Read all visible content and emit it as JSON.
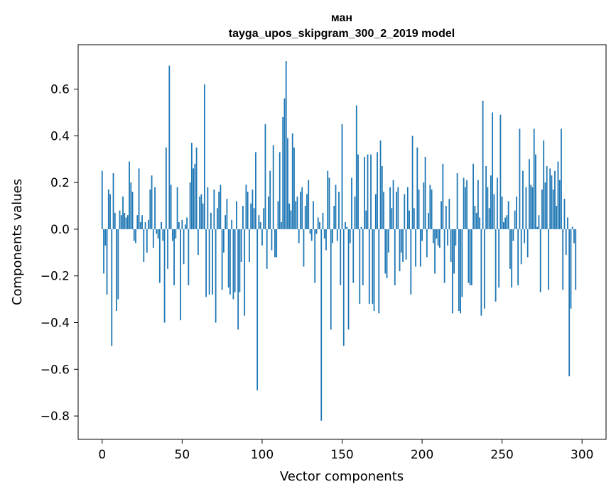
{
  "chart_data": {
    "type": "bar",
    "title": "ман",
    "subtitle": "tayga_upos_skipgram_300_2_2019 model",
    "xlabel": "Vector components",
    "ylabel": "Components values",
    "xlim": [
      -15,
      315
    ],
    "ylim": [
      -0.9,
      0.79
    ],
    "xticks": [
      0,
      50,
      100,
      150,
      200,
      250,
      300
    ],
    "xtick_labels": [
      "0",
      "50",
      "100",
      "150",
      "200",
      "250",
      "300"
    ],
    "yticks": [
      -0.8,
      -0.6,
      -0.4,
      -0.2,
      0.0,
      0.2,
      0.4,
      0.6
    ],
    "ytick_labels": [
      "−0.8",
      "−0.6",
      "−0.4",
      "−0.2",
      "0.0",
      "0.2",
      "0.4",
      "0.6"
    ],
    "bar_color": "#1f77b4",
    "grid": false,
    "values": [
      0.25,
      -0.19,
      -0.07,
      -0.28,
      0.17,
      0.15,
      -0.5,
      0.24,
      0.07,
      -0.35,
      -0.3,
      0.08,
      0.06,
      0.14,
      0.07,
      0.05,
      0.06,
      0.29,
      0.2,
      0.16,
      -0.05,
      -0.06,
      0.06,
      0.26,
      0.03,
      0.06,
      -0.14,
      0.03,
      -0.1,
      0.04,
      0.17,
      0.23,
      -0.08,
      0.18,
      -0.02,
      -0.04,
      -0.23,
      0.03,
      -0.05,
      -0.4,
      0.35,
      -0.17,
      0.7,
      0.19,
      -0.05,
      -0.24,
      -0.04,
      0.18,
      0.03,
      -0.39,
      0.04,
      -0.15,
      0.02,
      0.05,
      -0.24,
      0.2,
      0.37,
      0.26,
      0.28,
      0.35,
      -0.11,
      0.14,
      0.15,
      0.11,
      0.62,
      -0.29,
      0.18,
      -0.28,
      0.07,
      -0.28,
      0.17,
      -0.4,
      0.09,
      0.16,
      0.19,
      -0.26,
      -0.1,
      0.06,
      0.13,
      -0.25,
      -0.28,
      0.04,
      -0.3,
      -0.27,
      0.12,
      -0.43,
      -0.27,
      -0.14,
      0.1,
      -0.37,
      0.19,
      0.16,
      -0.14,
      0.11,
      0.17,
      0.09,
      0.33,
      -0.69,
      0.06,
      0.03,
      -0.07,
      0.09,
      0.45,
      -0.17,
      0.14,
      0.25,
      -0.09,
      0.36,
      -0.12,
      -0.12,
      0.12,
      0.33,
      0.03,
      0.48,
      0.56,
      0.72,
      0.39,
      0.11,
      0.08,
      0.41,
      0.35,
      0.12,
      0.14,
      -0.06,
      0.16,
      0.18,
      -0.16,
      0.1,
      0.15,
      0.21,
      -0.02,
      -0.05,
      0.12,
      -0.23,
      -0.02,
      0.05,
      0.03,
      -0.82,
      0.07,
      -0.04,
      -0.09,
      0.25,
      0.22,
      -0.43,
      -0.06,
      0.1,
      0.19,
      -0.05,
      0.16,
      -0.24,
      0.45,
      -0.5,
      0.03,
      0.01,
      -0.43,
      -0.06,
      0.22,
      -0.23,
      0.14,
      0.53,
      0.32,
      -0.32,
      0.01,
      -0.24,
      0.31,
      0.08,
      0.32,
      -0.32,
      0.32,
      -0.32,
      -0.35,
      0.15,
      0.33,
      -0.36,
      0.38,
      0.27,
      0.16,
      -0.19,
      -0.21,
      -0.1,
      0.18,
      0.09,
      0.21,
      -0.24,
      0.16,
      0.18,
      -0.18,
      -0.1,
      -0.14,
      0.15,
      -0.13,
      0.18,
      0.08,
      -0.28,
      0.4,
      0.09,
      -0.16,
      0.35,
      0.17,
      -0.16,
      -0.05,
      0.2,
      0.31,
      -0.12,
      0.07,
      0.19,
      0.17,
      -0.06,
      -0.19,
      -0.04,
      -0.07,
      -0.08,
      0.12,
      0.28,
      -0.23,
      0.1,
      -0.07,
      0.13,
      -0.14,
      -0.36,
      -0.19,
      -0.07,
      0.24,
      -0.35,
      -0.36,
      -0.29,
      0.22,
      0.18,
      0.21,
      -0.23,
      -0.24,
      -0.24,
      0.28,
      0.1,
      0.07,
      0.21,
      0.05,
      -0.37,
      0.55,
      -0.34,
      0.27,
      0.18,
      0.09,
      0.23,
      0.5,
      0.15,
      -0.31,
      0.22,
      -0.25,
      0.49,
      0.14,
      0.03,
      0.05,
      0.06,
      0.12,
      -0.17,
      -0.25,
      -0.05,
      0.08,
      0.14,
      -0.24,
      0.43,
      -0.15,
      0.25,
      -0.06,
      0.18,
      -0.12,
      0.3,
      0.19,
      0.18,
      0.43,
      0.32,
      0.01,
      0.06,
      -0.27,
      0.17,
      0.38,
      0.2,
      0.27,
      -0.26,
      0.26,
      0.23,
      0.17,
      0.25,
      0.1,
      0.29,
      0.21,
      0.43,
      -0.26,
      0.13,
      -0.11,
      0.05,
      -0.63,
      -0.34,
      0.01,
      -0.06,
      -0.26
    ]
  }
}
